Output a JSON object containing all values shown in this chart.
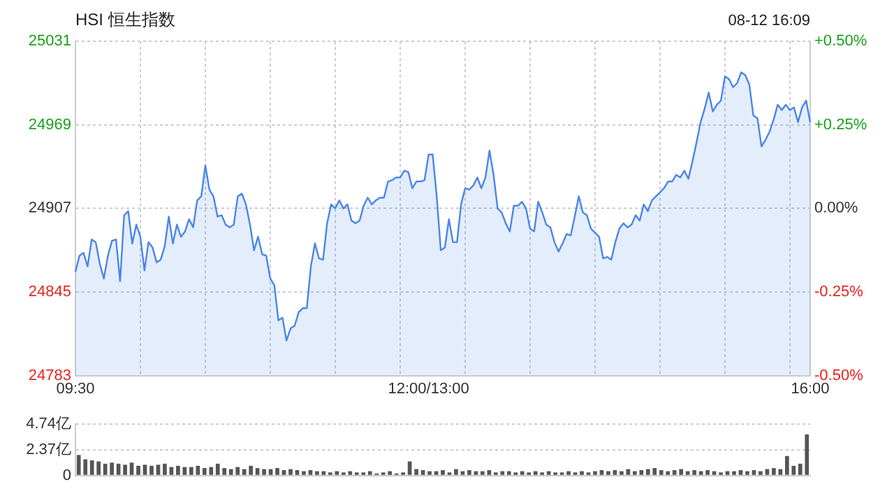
{
  "chart_data": [
    {
      "type": "area",
      "title": "HSI 恒生指数",
      "annotations": [
        "08-12 16:09"
      ],
      "categories": [
        "09:30",
        null,
        null,
        null,
        null,
        null,
        null,
        null,
        null,
        null,
        null,
        null,
        null,
        null,
        null,
        null,
        null,
        null,
        null,
        null,
        null,
        null,
        null,
        null,
        null,
        null,
        null,
        null,
        null,
        null,
        null,
        null,
        null,
        null,
        null,
        null,
        null,
        null,
        null,
        null,
        null,
        null,
        null,
        null,
        null,
        null,
        null,
        null,
        null,
        null,
        null,
        null,
        null,
        null,
        null,
        null,
        null,
        null,
        null,
        null,
        null,
        null,
        null,
        null,
        null,
        null,
        null,
        null,
        null,
        null,
        null,
        null,
        null,
        null,
        null,
        null,
        null,
        null,
        null,
        null,
        null,
        null,
        null,
        null,
        null,
        null,
        null,
        "12:00/13:00",
        null,
        null,
        null,
        null,
        null,
        null,
        null,
        null,
        null,
        null,
        null,
        null,
        null,
        null,
        null,
        null,
        null,
        null,
        null,
        null,
        null,
        null,
        null,
        null,
        null,
        null,
        null,
        null,
        null,
        null,
        null,
        null,
        null,
        null,
        null,
        null,
        null,
        null,
        null,
        null,
        null,
        null,
        null,
        null,
        null,
        null,
        null,
        null,
        null,
        null,
        null,
        null,
        null,
        null,
        null,
        null,
        null,
        null,
        null,
        null,
        null,
        null,
        null,
        null,
        null,
        null,
        null,
        null,
        null,
        null,
        null,
        null,
        null,
        null,
        null,
        null,
        null,
        null,
        null,
        null,
        null,
        null,
        null,
        null,
        null,
        null,
        null,
        null,
        null,
        null,
        null,
        null,
        null,
        "16:00"
      ],
      "series": [
        {
          "color": "#4a86e8",
          "values": [
            24860,
            24872,
            24874,
            24864,
            24884,
            24882,
            24866,
            24855,
            24872,
            24883,
            24884,
            24853,
            24902,
            24905,
            24881,
            24895,
            24886,
            24861,
            24882,
            24878,
            24867,
            24869,
            24879,
            24901,
            24881,
            24895,
            24886,
            24890,
            24899,
            24893,
            24913,
            24916,
            24939,
            24921,
            24916,
            24901,
            24902,
            24895,
            24893,
            24895,
            24916,
            24918,
            24910,
            24895,
            24876,
            24886,
            24873,
            24872,
            24855,
            24850,
            24824,
            24826,
            24809,
            24818,
            24820,
            24830,
            24833,
            24833,
            24864,
            24881,
            24870,
            24869,
            24896,
            24910,
            24907,
            24913,
            24907,
            24910,
            24898,
            24896,
            24898,
            24909,
            24915,
            24910,
            24913,
            24915,
            24915,
            24927,
            24928,
            24930,
            24930,
            24935,
            24934,
            24922,
            24927,
            24927,
            24928,
            24947,
            24947,
            24916,
            24876,
            24878,
            24899,
            24882,
            24882,
            24910,
            24922,
            24921,
            24924,
            24930,
            24922,
            24930,
            24950,
            24932,
            24907,
            24904,
            24896,
            24890,
            24909,
            24909,
            24912,
            24907,
            24892,
            24890,
            24912,
            24904,
            24895,
            24893,
            24882,
            24875,
            24881,
            24888,
            24887,
            24901,
            24916,
            24904,
            24902,
            24892,
            24889,
            24886,
            24870,
            24871,
            24869,
            24882,
            24892,
            24896,
            24893,
            24895,
            24902,
            24898,
            24910,
            24905,
            24913,
            24916,
            24919,
            24922,
            24927,
            24927,
            24932,
            24930,
            24935,
            24929,
            24942,
            24956,
            24971,
            24981,
            24993,
            24979,
            24984,
            24987,
            25005,
            25003,
            24997,
            25000,
            25008,
            25006,
            24999,
            24976,
            24974,
            24953,
            24958,
            24964,
            24973,
            24984,
            24980,
            24984,
            24980,
            24982,
            24971,
            24982,
            24987,
            24971
          ]
        }
      ],
      "ylim": [
        24783,
        25031
      ],
      "yticks": [
        24783,
        24845,
        24907,
        24969,
        25031
      ],
      "y2lim": [
        -0.5,
        0.5
      ],
      "y2ticks": [
        {
          "value": -0.5,
          "label": "-0.50%"
        },
        {
          "value": -0.25,
          "label": "-0.25%"
        },
        {
          "value": 0,
          "label": "0.00%"
        },
        {
          "value": 0.25,
          "label": "+0.25%"
        },
        {
          "value": 0.5,
          "label": "+0.50%"
        }
      ],
      "grid": true,
      "marker": "none",
      "line_style": "solid"
    },
    {
      "type": "bar",
      "color": "#555555",
      "categories": [
        null,
        null,
        null,
        null,
        null,
        null,
        null,
        null,
        null,
        null,
        null,
        null,
        null,
        null,
        null,
        null,
        null,
        null,
        null,
        null,
        null,
        null,
        null,
        null,
        null,
        null,
        null,
        null,
        null,
        null,
        null,
        null,
        null,
        null,
        null,
        null,
        null,
        null,
        null,
        null,
        null,
        null,
        null,
        null,
        null,
        null,
        null,
        null,
        null,
        null,
        null,
        null,
        null,
        null,
        null,
        null,
        null,
        null,
        null,
        null,
        null,
        null,
        null,
        null,
        null,
        null,
        null,
        null,
        null,
        null,
        null,
        null,
        null,
        null,
        null,
        null,
        null,
        null,
        null,
        null,
        null,
        null,
        null,
        null,
        null,
        null,
        null,
        null,
        null,
        null,
        null,
        null,
        null,
        null,
        null,
        null,
        null,
        null,
        null,
        null,
        null,
        null,
        null,
        null,
        null,
        null,
        null,
        null,
        null,
        null,
        null
      ],
      "values": [
        1.9,
        1.5,
        1.4,
        1.3,
        1.1,
        1.2,
        1.1,
        1.0,
        1.2,
        0.9,
        1.0,
        0.9,
        1.0,
        1.1,
        0.8,
        0.9,
        0.8,
        0.8,
        0.9,
        0.7,
        0.8,
        1.1,
        0.7,
        0.6,
        0.8,
        0.6,
        0.9,
        0.7,
        0.6,
        0.6,
        0.7,
        0.5,
        0.6,
        0.5,
        0.4,
        0.5,
        0.4,
        0.4,
        0.3,
        0.4,
        0.3,
        0.4,
        0.3,
        0.3,
        0.4,
        0.2,
        0.3,
        0.4,
        0.2,
        0.3,
        1.3,
        0.6,
        0.5,
        0.4,
        0.4,
        0.5,
        0.3,
        0.6,
        0.4,
        0.5,
        0.4,
        0.4,
        0.5,
        0.3,
        0.4,
        0.4,
        0.3,
        0.4,
        0.3,
        0.4,
        0.3,
        0.4,
        0.3,
        0.3,
        0.4,
        0.3,
        0.4,
        0.3,
        0.4,
        0.5,
        0.4,
        0.5,
        0.4,
        0.6,
        0.4,
        0.5,
        0.6,
        0.7,
        0.5,
        0.4,
        0.5,
        0.6,
        0.4,
        0.5,
        0.4,
        0.5,
        0.4,
        0.3,
        0.4,
        0.4,
        0.5,
        0.4,
        0.5,
        0.4,
        0.6,
        0.7,
        0.6,
        1.8,
        0.9,
        1.1,
        3.8
      ],
      "ylim": [
        0,
        4.74
      ],
      "yticks": [
        0,
        {
          "value": 2.37,
          "label": "2.37亿"
        },
        {
          "value": 4.74,
          "label": "4.74亿"
        }
      ],
      "grid": "y",
      "tick_labels": "y"
    }
  ]
}
